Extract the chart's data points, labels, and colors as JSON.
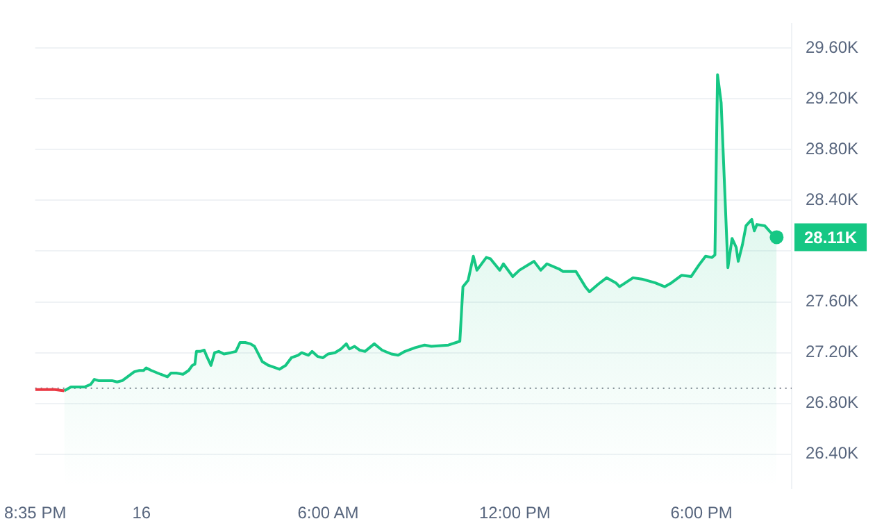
{
  "chart_data": {
    "type": "line",
    "xlim": [
      "--03-15T20:35",
      "--03-16T20:54"
    ],
    "ylim": [
      26130,
      29790
    ],
    "xticks": [
      {
        "value": "--03-15T20:35",
        "label": "8:35 PM"
      },
      {
        "value": "--03-16T00:00",
        "label": "16"
      },
      {
        "value": "--03-16T06:00",
        "label": "6:00 AM"
      },
      {
        "value": "--03-16T12:00",
        "label": "12:00 PM"
      },
      {
        "value": "--03-16T18:00",
        "label": "6:00 PM"
      }
    ],
    "yticks": [
      {
        "value": 26400,
        "label": "26.40K"
      },
      {
        "value": 26800,
        "label": "26.80K"
      },
      {
        "value": 27200,
        "label": "27.20K"
      },
      {
        "value": 27600,
        "label": "27.60K"
      },
      {
        "value": 28000,
        "label": null
      },
      {
        "value": 28400,
        "label": "28.40K"
      },
      {
        "value": 28800,
        "label": "28.80K"
      },
      {
        "value": 29200,
        "label": "29.20K"
      },
      {
        "value": 29600,
        "label": "29.60K"
      }
    ],
    "grid": "y",
    "legend": false,
    "marker": "none",
    "line_style": "solid",
    "ref_lines": [
      {
        "axis": "y",
        "value": 26920,
        "color": "#8a8f99",
        "line_style": "dotted"
      }
    ],
    "annotations": [
      {
        "text": "28.11K",
        "x": "--03-16T20:25",
        "y": 28110
      }
    ],
    "series": [
      {
        "type": "line",
        "color": "#ea3943",
        "x": [
          "--03-15T20:35",
          "--03-15T21:01",
          "--03-15T21:13",
          "--03-15T21:31"
        ],
        "values": [
          26910,
          26910,
          26910,
          26900
        ]
      },
      {
        "type": "area",
        "color": "#16c784",
        "x": [
          "--03-15T21:31",
          "--03-15T21:44",
          "--03-15T22:10",
          "--03-15T22:22",
          "--03-15T22:29",
          "--03-15T22:37",
          "--03-15T22:47",
          "--03-15T23:03",
          "--03-15T23:13",
          "--03-15T23:23",
          "--03-15T23:33",
          "--03-15T23:46",
          "--03-15T23:56",
          "--03-16T00:04",
          "--03-16T00:09",
          "--03-16T00:19",
          "--03-16T00:37",
          "--03-16T00:50",
          "--03-16T00:57",
          "--03-16T01:07",
          "--03-16T01:20",
          "--03-16T01:31",
          "--03-16T01:38",
          "--03-16T01:43",
          "--03-16T01:46",
          "--03-16T01:53",
          "--03-16T02:01",
          "--03-16T02:06",
          "--03-16T02:14",
          "--03-16T02:21",
          "--03-16T02:29",
          "--03-16T02:39",
          "--03-16T02:52",
          "--03-16T03:02",
          "--03-16T03:10",
          "--03-16T03:20",
          "--03-16T03:30",
          "--03-16T03:38",
          "--03-16T03:53",
          "--03-16T04:05",
          "--03-16T04:26",
          "--03-16T04:38",
          "--03-16T04:49",
          "--03-16T05:02",
          "--03-16T05:09",
          "--03-16T05:22",
          "--03-16T05:29",
          "--03-16T05:40",
          "--03-16T05:50",
          "--03-16T06:00",
          "--03-16T06:13",
          "--03-16T06:25",
          "--03-16T06:35",
          "--03-16T06:41",
          "--03-16T06:51",
          "--03-16T07:01",
          "--03-16T07:11",
          "--03-16T07:29",
          "--03-16T07:44",
          "--03-16T08:02",
          "--03-16T08:15",
          "--03-16T08:28",
          "--03-16T08:48",
          "--03-16T09:06",
          "--03-16T09:19",
          "--03-16T09:52",
          "--03-16T10:14",
          "--03-16T10:20",
          "--03-16T10:30",
          "--03-16T10:40",
          "--03-16T10:47",
          "--03-16T11:05",
          "--03-16T11:13",
          "--03-16T11:31",
          "--03-16T11:38",
          "--03-16T11:56",
          "--03-16T12:09",
          "--03-16T12:37",
          "--03-16T12:50",
          "--03-16T13:02",
          "--03-16T13:25",
          "--03-16T13:33",
          "--03-16T13:58",
          "--03-16T14:16",
          "--03-16T14:24",
          "--03-16T14:41",
          "--03-16T14:57",
          "--03-16T15:15",
          "--03-16T15:22",
          "--03-16T15:48",
          "--03-16T16:05",
          "--03-16T16:31",
          "--03-16T16:49",
          "--03-16T17:02",
          "--03-16T17:22",
          "--03-16T17:40",
          "--03-16T17:55",
          "--03-16T18:08",
          "--03-16T18:20",
          "--03-16T18:26",
          "--03-16T18:31",
          "--03-16T18:38",
          "--03-16T18:51",
          "--03-16T18:59",
          "--03-16T19:07",
          "--03-16T19:11",
          "--03-16T19:19",
          "--03-16T19:26",
          "--03-16T19:37",
          "--03-16T19:42",
          "--03-16T19:47",
          "--03-16T20:02",
          "--03-16T20:13",
          "--03-16T20:25"
        ],
        "values": [
          26900,
          26930,
          26930,
          26950,
          26990,
          26980,
          26980,
          26980,
          26970,
          26980,
          27010,
          27050,
          27060,
          27060,
          27080,
          27060,
          27030,
          27010,
          27040,
          27040,
          27030,
          27060,
          27100,
          27110,
          27210,
          27210,
          27220,
          27170,
          27100,
          27200,
          27210,
          27190,
          27200,
          27210,
          27280,
          27280,
          27270,
          27250,
          27130,
          27100,
          27070,
          27100,
          27160,
          27180,
          27200,
          27180,
          27210,
          27170,
          27160,
          27190,
          27200,
          27230,
          27270,
          27230,
          27250,
          27220,
          27210,
          27270,
          27220,
          27190,
          27180,
          27210,
          27240,
          27260,
          27250,
          27260,
          27290,
          27720,
          27770,
          27960,
          27850,
          27950,
          27940,
          27850,
          27900,
          27800,
          27850,
          27920,
          27850,
          27900,
          27860,
          27840,
          27840,
          27720,
          27680,
          27740,
          27790,
          27750,
          27720,
          27790,
          27780,
          27750,
          27720,
          27750,
          27810,
          27800,
          27890,
          27960,
          27950,
          27970,
          29390,
          29170,
          27870,
          28100,
          28030,
          27920,
          28050,
          28200,
          28250,
          28160,
          28210,
          28200,
          28150,
          28110
        ]
      }
    ]
  }
}
